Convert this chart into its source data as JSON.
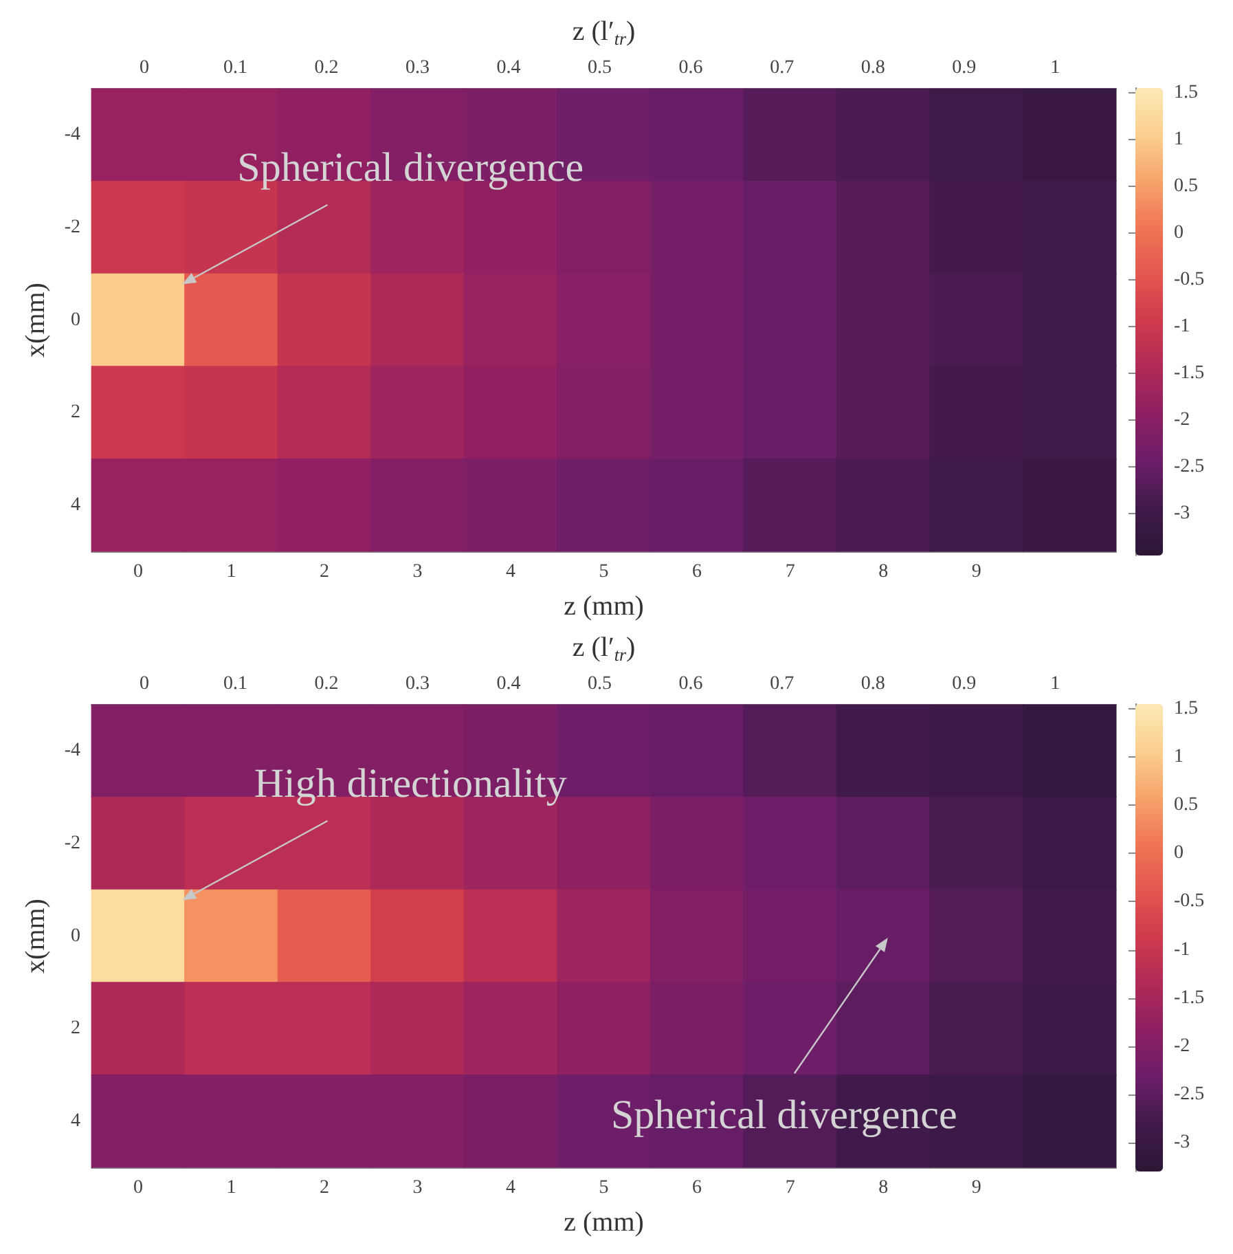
{
  "chart_data": [
    {
      "type": "heatmap",
      "xlabel": "z (mm)",
      "ylabel": "x(mm)",
      "x2label": "z (l′$_{tr}$)",
      "categories": [
        "0",
        "1",
        "2",
        "3",
        "4",
        "5",
        "6",
        "7",
        "8",
        "9",
        null
      ],
      "y_categories": [
        "-4",
        "-2",
        "0",
        "2",
        "4"
      ],
      "cells": [
        [
          -1.8,
          -1.8,
          -1.9,
          -2.1,
          -2.2,
          -2.4,
          -2.5,
          -2.7,
          -2.8,
          -3.0,
          -3.1
        ],
        [
          -1.0,
          -1.1,
          -1.4,
          -1.7,
          -1.9,
          -2.1,
          -2.3,
          -2.5,
          -2.7,
          -2.9,
          -3.0
        ],
        [
          1.0,
          -0.4,
          -1.1,
          -1.5,
          -1.8,
          -2.0,
          -2.3,
          -2.5,
          -2.7,
          -2.8,
          -3.0
        ],
        [
          -1.0,
          -1.1,
          -1.4,
          -1.7,
          -1.9,
          -2.1,
          -2.3,
          -2.5,
          -2.7,
          -2.9,
          -3.0
        ],
        [
          -1.8,
          -1.8,
          -1.9,
          -2.1,
          -2.2,
          -2.4,
          -2.5,
          -2.7,
          -2.8,
          -3.0,
          -3.1
        ]
      ],
      "x2lim": [
        -0.058,
        1.067
      ],
      "x2ticks": [
        0,
        0.1,
        0.2,
        0.3,
        0.4,
        0.5,
        0.6,
        0.7,
        0.8,
        0.9,
        1
      ],
      "clim": [
        -3.45,
        1.55
      ],
      "cticks": [
        -3,
        -2.5,
        -2,
        -1.5,
        -1,
        -0.5,
        0,
        0.5,
        1,
        1.5
      ],
      "annotations": [
        "Spherical divergence"
      ]
    },
    {
      "type": "heatmap",
      "xlabel": "z (mm)",
      "ylabel": "x(mm)",
      "x2label": "z (l′$_{tr}$)",
      "categories": [
        "0",
        "1",
        "2",
        "3",
        "4",
        "5",
        "6",
        "7",
        "8",
        "9",
        null
      ],
      "y_categories": [
        "-4",
        "-2",
        "0",
        "2",
        "4"
      ],
      "cells": [
        [
          -2.0,
          -2.0,
          -2.0,
          -2.0,
          -2.1,
          -2.3,
          -2.4,
          -2.6,
          -2.8,
          -2.9,
          -3.1
        ],
        [
          -1.4,
          -1.2,
          -1.2,
          -1.4,
          -1.6,
          -1.8,
          -2.1,
          -2.3,
          -2.5,
          -2.7,
          -2.9
        ],
        [
          1.3,
          0.4,
          -0.3,
          -0.8,
          -1.2,
          -1.6,
          -2.0,
          -2.2,
          -2.4,
          -2.6,
          -2.8
        ],
        [
          -1.4,
          -1.2,
          -1.2,
          -1.4,
          -1.6,
          -1.8,
          -2.1,
          -2.3,
          -2.5,
          -2.7,
          -2.9
        ],
        [
          -2.0,
          -2.0,
          -2.0,
          -2.0,
          -2.1,
          -2.3,
          -2.4,
          -2.6,
          -2.8,
          -2.9,
          -3.1
        ]
      ],
      "x2lim": [
        -0.058,
        1.067
      ],
      "x2ticks": [
        0,
        0.1,
        0.2,
        0.3,
        0.4,
        0.5,
        0.6,
        0.7,
        0.8,
        0.9,
        1
      ],
      "clim": [
        -3.3,
        1.55
      ],
      "cticks": [
        -3,
        -2.5,
        -2,
        -1.5,
        -1,
        -0.5,
        0,
        0.5,
        1,
        1.5
      ],
      "annotations": [
        "High directionality",
        "Spherical divergence"
      ]
    }
  ]
}
